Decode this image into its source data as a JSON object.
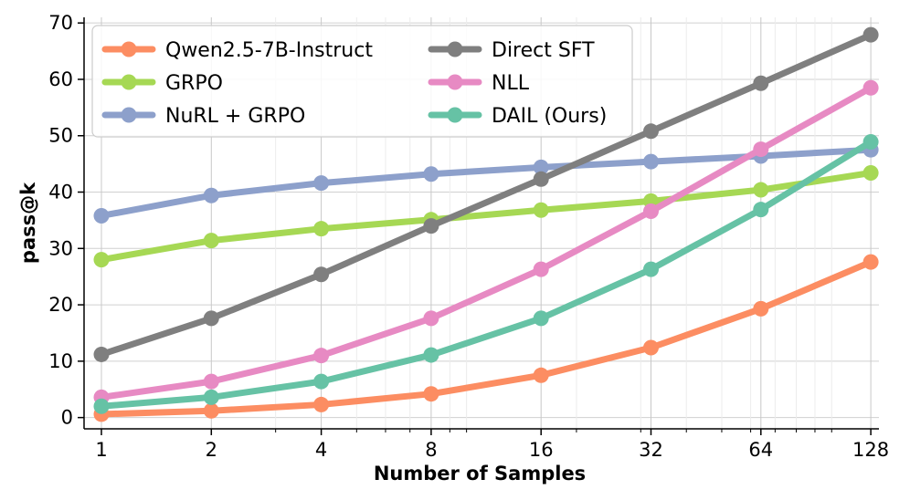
{
  "chart_data": {
    "type": "line",
    "title": "",
    "xlabel": "Number of Samples",
    "ylabel": "pass@k",
    "x": [
      1,
      2,
      4,
      8,
      16,
      32,
      64,
      128
    ],
    "x_tick_labels": [
      "1",
      "2",
      "4",
      "8",
      "16",
      "32",
      "64",
      "128"
    ],
    "x_scale": "log2",
    "ylim": [
      -2,
      71
    ],
    "y_ticks": [
      0,
      10,
      20,
      30,
      40,
      50,
      60,
      70
    ],
    "y_tick_labels": [
      "0",
      "10",
      "20",
      "30",
      "40",
      "50",
      "60",
      "70"
    ],
    "grid": true,
    "legend_position": "top-left",
    "series": [
      {
        "name": "Qwen2.5-7B-Instruct",
        "color": "#fc8d62",
        "values": [
          0.6,
          1.2,
          2.3,
          4.2,
          7.5,
          12.4,
          19.3,
          27.6
        ]
      },
      {
        "name": "GRPO",
        "color": "#a6d854",
        "values": [
          28.0,
          31.4,
          33.5,
          35.1,
          36.8,
          38.4,
          40.4,
          43.4
        ]
      },
      {
        "name": "NuRL + GRPO",
        "color": "#8da0cb",
        "values": [
          35.8,
          39.4,
          41.6,
          43.2,
          44.4,
          45.4,
          46.4,
          47.5
        ]
      },
      {
        "name": "Direct SFT",
        "color": "#7f7f7f",
        "values": [
          11.2,
          17.6,
          25.4,
          34.0,
          42.3,
          50.8,
          59.3,
          67.9
        ]
      },
      {
        "name": "NLL",
        "color": "#e78ac3",
        "values": [
          3.6,
          6.4,
          11.0,
          17.6,
          26.3,
          36.6,
          47.6,
          58.5
        ]
      },
      {
        "name": "DAIL (Ours)",
        "color": "#66c2a5",
        "values": [
          2.0,
          3.6,
          6.4,
          11.1,
          17.6,
          26.3,
          36.9,
          48.9
        ]
      }
    ]
  }
}
